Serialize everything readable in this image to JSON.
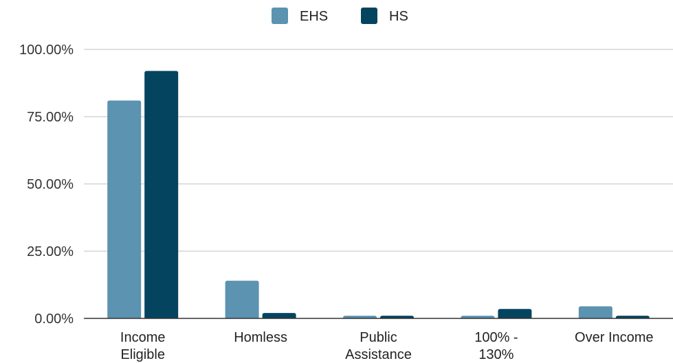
{
  "chart_data": {
    "type": "bar",
    "title": "",
    "xlabel": "",
    "ylabel": "",
    "categories": [
      [
        "Income",
        "Eligible"
      ],
      [
        "Homless"
      ],
      [
        "Public",
        "Assistance"
      ],
      [
        "100% -",
        "130%"
      ],
      [
        "Over Income"
      ]
    ],
    "series": [
      {
        "name": "EHS",
        "color": "#5b93b0",
        "values": [
          0.81,
          0.14,
          0.01,
          0.01,
          0.045
        ]
      },
      {
        "name": "HS",
        "color": "#05445e",
        "values": [
          0.92,
          0.02,
          0.01,
          0.035,
          0.01
        ]
      }
    ],
    "ylim": [
      0,
      1
    ],
    "yticks": [
      0,
      0.25,
      0.5,
      0.75,
      1
    ],
    "ytick_labels": [
      "0.00%",
      "25.00%",
      "50.00%",
      "75.00%",
      "100.00%"
    ],
    "grid": true,
    "legend_position": "top-center"
  }
}
